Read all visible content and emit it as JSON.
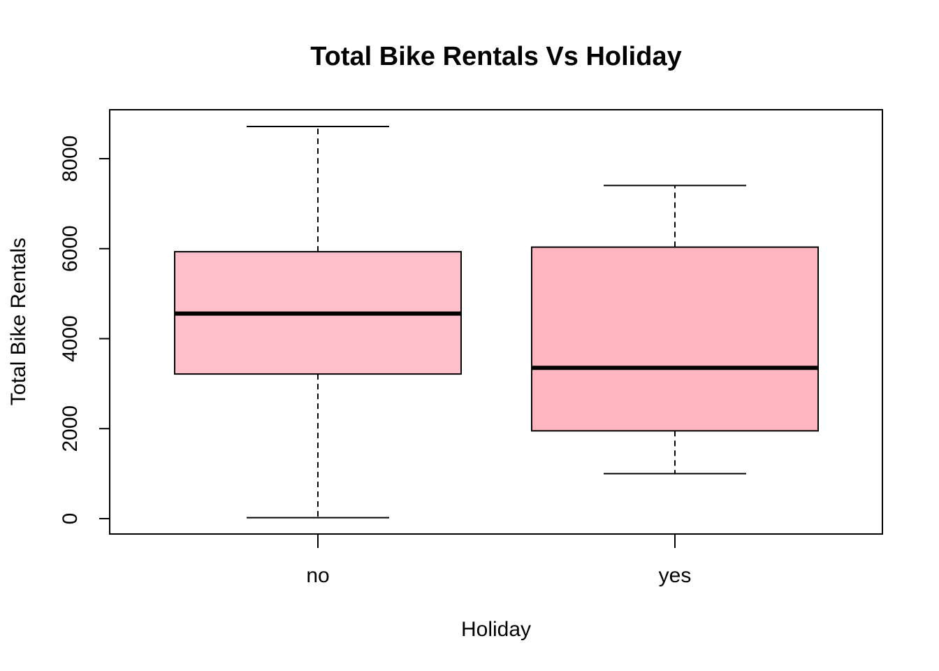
{
  "chart_data": {
    "type": "boxplot",
    "title": "Total Bike Rentals Vs Holiday",
    "xlabel": "Holiday",
    "ylabel": "Total Bike Rentals",
    "categories": [
      "no",
      "yes"
    ],
    "boxes": [
      {
        "category": "no",
        "min": 22,
        "q1": 3214,
        "median": 4558,
        "q3": 5932,
        "max": 8714,
        "fill": "#ffc0cb"
      },
      {
        "category": "yes",
        "min": 1000,
        "q1": 1951,
        "median": 3351,
        "q3": 6034,
        "max": 7403,
        "fill": "#ffb6c1"
      }
    ],
    "yticks": [
      0,
      2000,
      4000,
      6000,
      8000
    ],
    "ylim": [
      -300,
      9100
    ],
    "grid": false,
    "legend": "none"
  }
}
